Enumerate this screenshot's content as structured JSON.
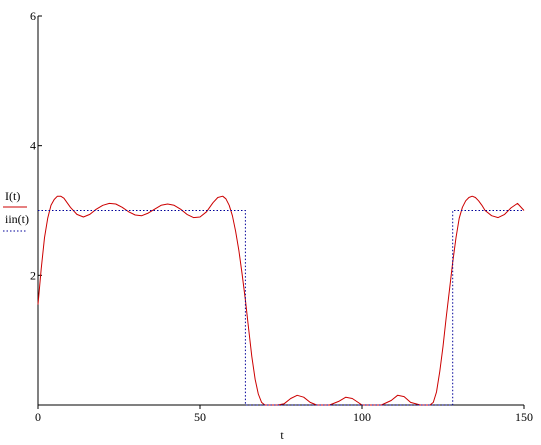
{
  "chart_data": {
    "type": "line",
    "xlabel": "t",
    "ylabel": "",
    "xlim": [
      0,
      150
    ],
    "ylim": [
      0,
      6
    ],
    "x_ticks": [
      0,
      50,
      100,
      150
    ],
    "y_ticks": [
      2,
      4,
      6
    ],
    "grid": false,
    "legend_position": "left",
    "series": [
      {
        "name": "I(t)",
        "color": "#cc0000",
        "style": "solid",
        "x": [
          0,
          1,
          2,
          3,
          4,
          5,
          6,
          7,
          8,
          10,
          12,
          14,
          16,
          18,
          20,
          22,
          24,
          26,
          28,
          30,
          32,
          34,
          36,
          38,
          40,
          42,
          44,
          46,
          48,
          50,
          52,
          54,
          55.5,
          57,
          58,
          59,
          60,
          61,
          62,
          63,
          64,
          65,
          66,
          67,
          68,
          69,
          70,
          70.5,
          74,
          76,
          78,
          80,
          82,
          84,
          86,
          90,
          93,
          95,
          97,
          100,
          103,
          106,
          109,
          111,
          113,
          115,
          118,
          121,
          122,
          123,
          124,
          125,
          126,
          127,
          128,
          129,
          130,
          131,
          132,
          133,
          134,
          135,
          136,
          137,
          138,
          140,
          142,
          144,
          146,
          148,
          150
        ],
        "values": [
          1.55,
          2.1,
          2.58,
          2.88,
          3.08,
          3.17,
          3.22,
          3.22,
          3.19,
          3.05,
          2.94,
          2.9,
          2.94,
          3.02,
          3.08,
          3.11,
          3.1,
          3.05,
          2.98,
          2.93,
          2.92,
          2.96,
          3.02,
          3.08,
          3.1,
          3.08,
          3.02,
          2.94,
          2.89,
          2.9,
          2.98,
          3.12,
          3.2,
          3.22,
          3.18,
          3.08,
          2.92,
          2.68,
          2.38,
          2.02,
          1.62,
          1.18,
          0.75,
          0.4,
          0.17,
          0.04,
          0.0,
          0.0,
          0.0,
          0.02,
          0.1,
          0.15,
          0.12,
          0.04,
          0.0,
          0.0,
          0.06,
          0.12,
          0.1,
          0.0,
          0.0,
          0.0,
          0.07,
          0.15,
          0.13,
          0.04,
          0.0,
          0.0,
          0.04,
          0.2,
          0.52,
          0.9,
          1.35,
          1.78,
          2.2,
          2.58,
          2.88,
          3.05,
          3.15,
          3.2,
          3.22,
          3.2,
          3.15,
          3.08,
          3.0,
          2.92,
          2.89,
          2.94,
          3.04,
          3.11,
          3.0
        ]
      },
      {
        "name": "iin(t)",
        "color": "#000099",
        "style": "dotted",
        "x": [
          0,
          64,
          64,
          128,
          128,
          150
        ],
        "values": [
          3,
          3,
          0,
          0,
          3,
          3
        ]
      }
    ]
  }
}
